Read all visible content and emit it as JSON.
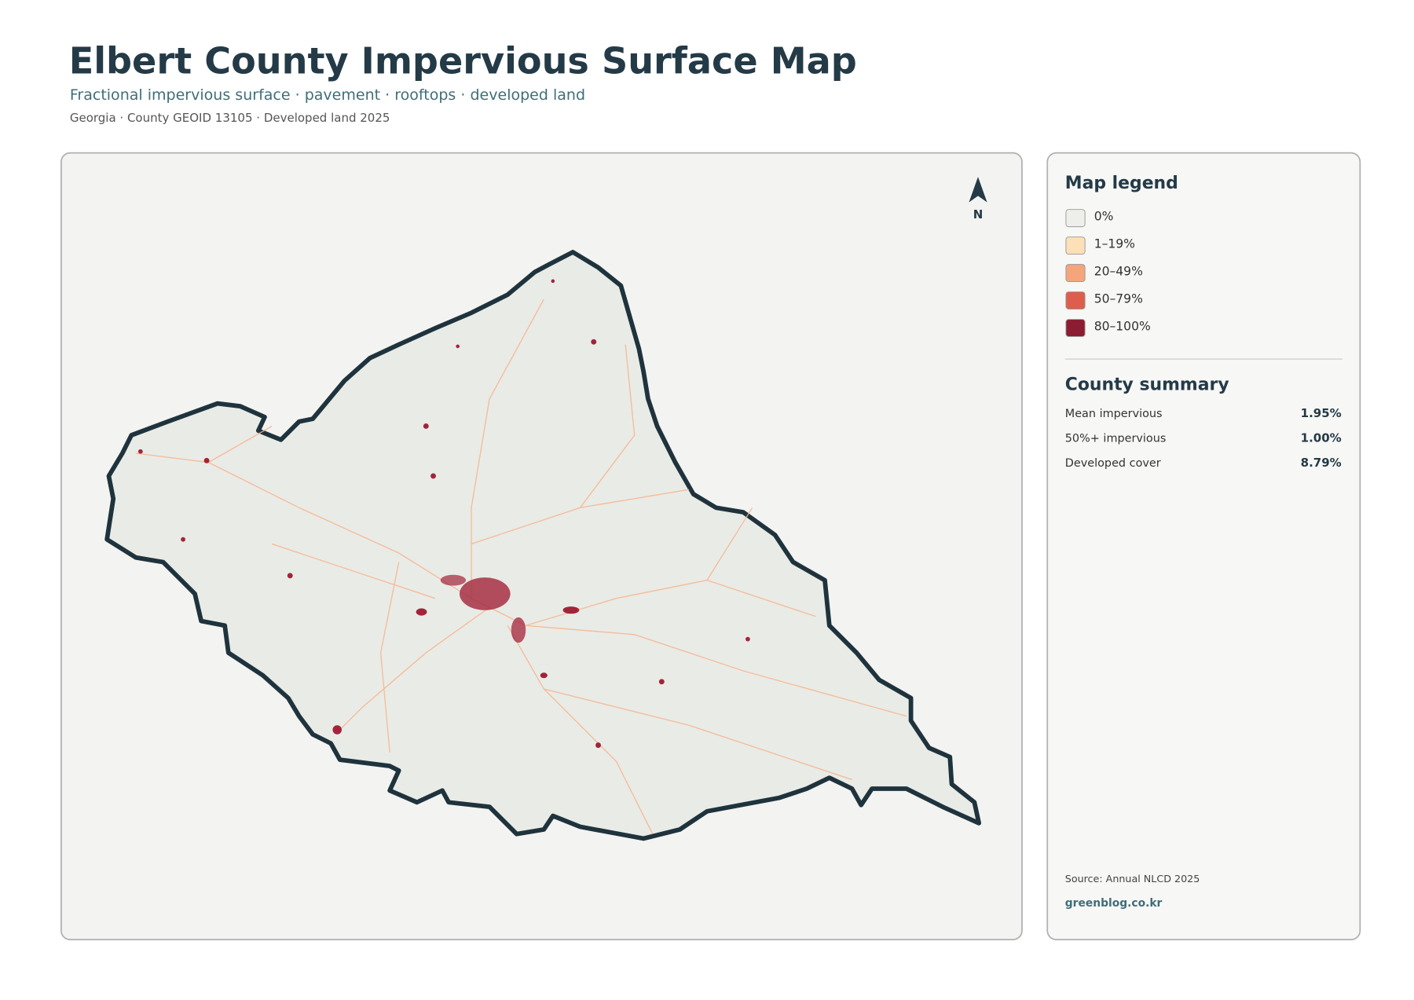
{
  "header": {
    "title": "Elbert County Impervious Surface Map",
    "subtitle": "Fractional impervious surface · pavement · rooftops · developed land",
    "meta": "Georgia · County GEOID 13105 · Developed land 2025"
  },
  "map": {
    "north": "N"
  },
  "legend": {
    "title": "Map legend",
    "items": [
      {
        "label": "0%",
        "color": "#eeeeea"
      },
      {
        "label": "1–19%",
        "color": "#fde0b8"
      },
      {
        "label": "20–49%",
        "color": "#f4a57c"
      },
      {
        "label": "50–79%",
        "color": "#dd5e4c"
      },
      {
        "label": "80–100%",
        "color": "#8c1c32"
      }
    ]
  },
  "summary": {
    "title": "County summary",
    "rows": [
      {
        "label": "Mean impervious",
        "value": "1.95%"
      },
      {
        "label": "50%+ impervious",
        "value": "1.00%"
      },
      {
        "label": "Developed cover",
        "value": "8.79%"
      }
    ]
  },
  "footer": {
    "source": "Source: Annual NLCD 2025",
    "site": "greenblog.co.kr"
  }
}
